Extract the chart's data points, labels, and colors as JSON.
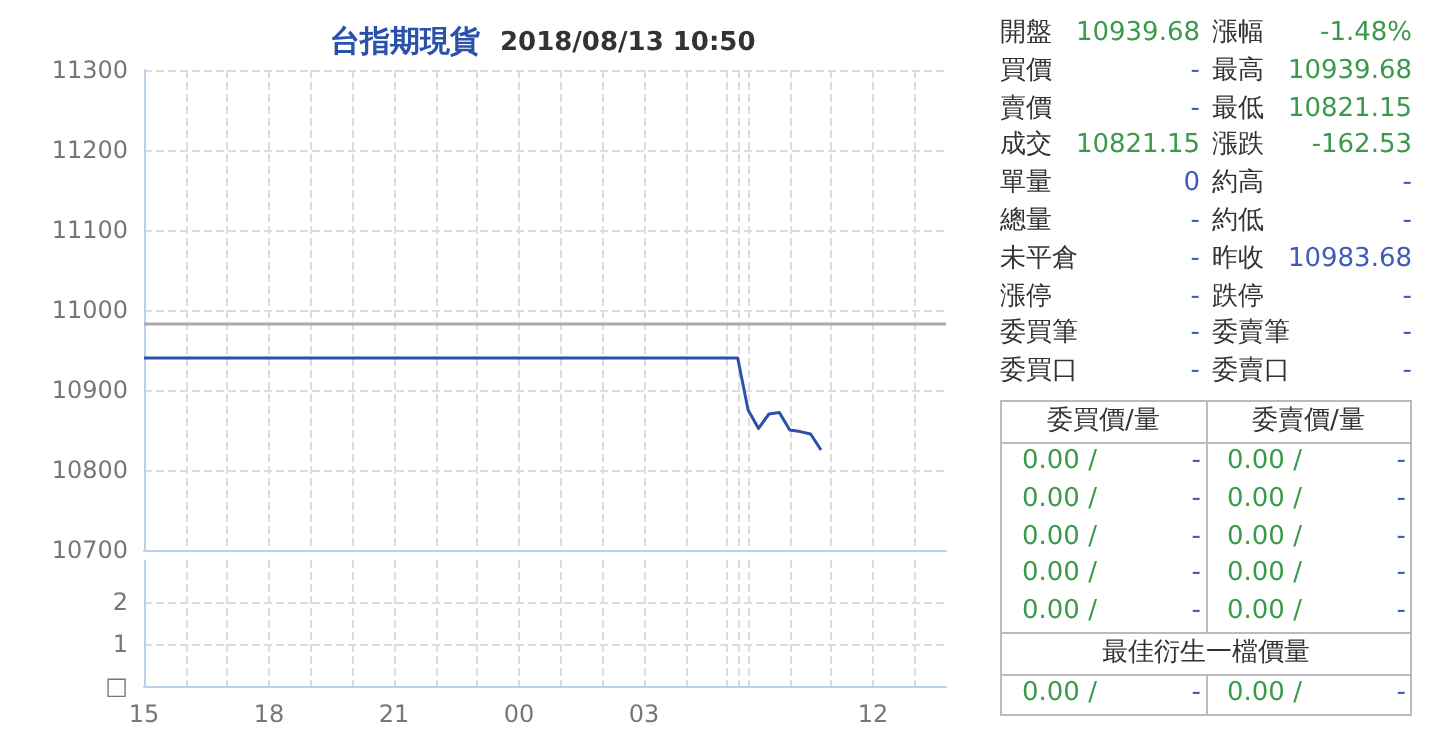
{
  "chart_data": [
    {
      "type": "line",
      "title": "台指期現貨",
      "subtitle": "2018/08/13 10:50",
      "categories": [
        "15",
        null,
        null,
        null,
        null,
        null,
        null,
        null,
        null,
        null,
        null,
        null,
        "18",
        null,
        null,
        null,
        null,
        null,
        null,
        null,
        null,
        null,
        null,
        null,
        "21",
        null,
        null,
        null,
        null,
        null,
        null,
        null,
        null,
        null,
        null,
        null,
        "00",
        null,
        null,
        null,
        null,
        null,
        null,
        null,
        null,
        null,
        null,
        null,
        "03",
        null,
        null,
        null,
        null,
        null,
        null,
        null,
        null,
        null,
        null,
        null,
        null,
        null,
        null,
        null,
        null,
        null,
        null,
        null,
        null,
        null,
        "12",
        null,
        null,
        null,
        null,
        null,
        null,
        null
      ],
      "values": [
        10940,
        10940,
        10940,
        10940,
        10940,
        10940,
        10940,
        10940,
        10940,
        10940,
        10940,
        10940,
        10940,
        10940,
        10940,
        10940,
        10940,
        10940,
        10940,
        10940,
        10940,
        10940,
        10940,
        10940,
        10940,
        10940,
        10940,
        10940,
        10940,
        10940,
        10940,
        10940,
        10940,
        10940,
        10940,
        10940,
        10940,
        10940,
        10940,
        10940,
        10940,
        10940,
        10940,
        10940,
        10940,
        10940,
        10940,
        10940,
        10940,
        10940,
        10940,
        10940,
        10940,
        10940,
        10940,
        10940,
        10940,
        10940,
        10875,
        10852,
        10870,
        10872,
        10850,
        10848,
        10845,
        10825,
        null,
        null,
        null,
        null,
        null,
        null,
        null,
        null,
        null,
        null,
        null,
        null
      ],
      "color": "#2a52a8",
      "line_style": "solid",
      "ylim": [
        10700,
        11300
      ],
      "yticks": [
        10700,
        10800,
        10900,
        11000,
        11100,
        11200,
        11300
      ],
      "ref_lines": [
        {
          "axis": "y",
          "value": 10983.68,
          "color": "#aaaaaa"
        }
      ],
      "grid": true,
      "tick_labels": "y"
    },
    {
      "type": "bar",
      "categories": [
        "15",
        null,
        null,
        null,
        null,
        null,
        null,
        null,
        null,
        null,
        null,
        null,
        "18",
        null,
        null,
        null,
        null,
        null,
        null,
        null,
        null,
        null,
        null,
        null,
        "21",
        null,
        null,
        null,
        null,
        null,
        null,
        null,
        null,
        null,
        null,
        null,
        "00",
        null,
        null,
        null,
        null,
        null,
        null,
        null,
        null,
        null,
        null,
        null,
        "03",
        null,
        null,
        null,
        null,
        null,
        null,
        null,
        null,
        null,
        null,
        null,
        null,
        null,
        null,
        null,
        null,
        null,
        null,
        null,
        null,
        null,
        "12",
        null,
        null,
        null,
        null,
        null,
        null,
        null
      ],
      "ylim": [
        0,
        3
      ],
      "yticks": [
        {
          "value": 0,
          "label": "□"
        },
        1,
        2
      ],
      "grid": true
    },
    {
      "type": "other",
      "annotations": [
        "開盤",
        "10939.68",
        "漲幅",
        "-1.48%",
        "買價",
        "-",
        "最高",
        "10939.68",
        "賣價",
        "-",
        "最低",
        "10821.15",
        "成交",
        "10821.15",
        "漲跌",
        "-162.53",
        "單量",
        "0",
        "約高",
        "-",
        "總量",
        "-",
        "約低",
        "-",
        "未平倉",
        "-",
        "昨收",
        "10983.68",
        "漲停",
        "-",
        "跌停",
        "-",
        "委買筆",
        "-",
        "委賣筆",
        "-",
        "委買口",
        "-",
        "委賣口",
        "-",
        "委買價/量",
        "委賣價/量",
        "0.00 /",
        "-",
        "0.00 /",
        "-",
        "0.00 /",
        "-",
        "0.00 /",
        "-",
        "0.00 /",
        "-",
        "0.00 /",
        "-",
        "0.00 /",
        "-",
        "0.00 /",
        "-",
        "0.00 /",
        "-",
        "0.00 /",
        "-",
        "最佳衍生一檔價量",
        "0.00 /",
        "-",
        "0.00 /",
        "-"
      ]
    }
  ]
}
